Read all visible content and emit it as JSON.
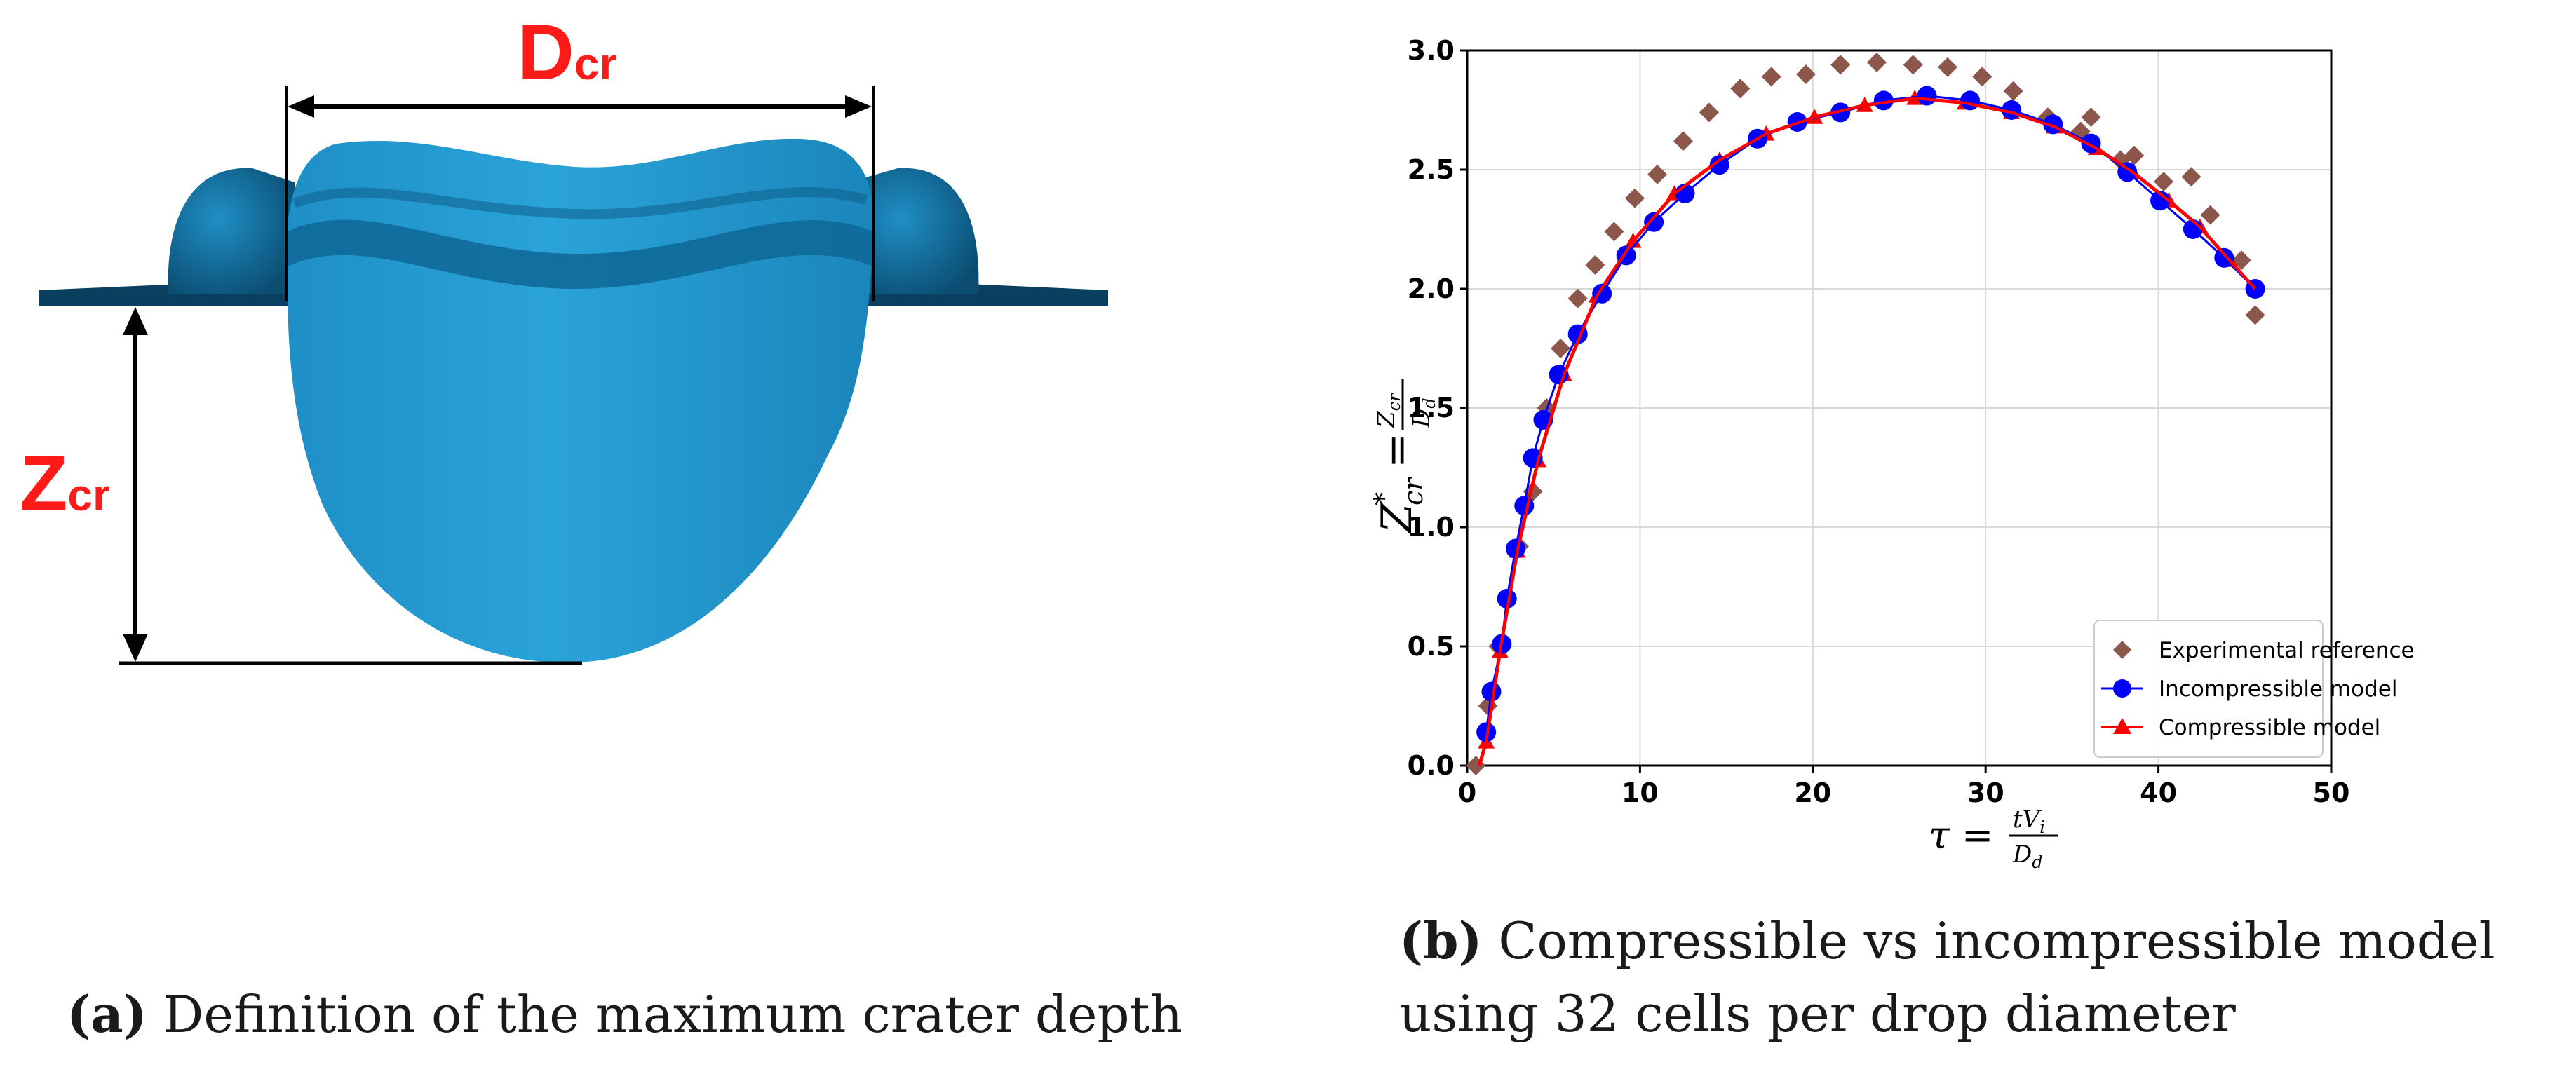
{
  "panel_a": {
    "label_diameter": "D",
    "label_diameter_sub": "cr",
    "label_depth": "Z",
    "label_depth_sub": "cr",
    "caption_tag": "(a)",
    "caption_text": " Definition of the maximum crater depth"
  },
  "panel_b": {
    "caption_tag": "(b)",
    "caption_text": " Compressible vs incompressible model using 32 cells per drop diameter"
  },
  "chart_data": {
    "type": "scatter",
    "xlabel": "τ = tV_i / D_d",
    "ylabel": "Z*_cr = Z_cr / D_d",
    "xlim": [
      0,
      50
    ],
    "ylim": [
      0,
      3.0
    ],
    "xticks": [
      "0",
      "10",
      "20",
      "30",
      "40",
      "50"
    ],
    "yticks": [
      "0.0",
      "0.5",
      "1.0",
      "1.5",
      "2.0",
      "2.5",
      "3.0"
    ],
    "grid": true,
    "legend_position": "bottom-right",
    "series": [
      {
        "name": "Experimental reference",
        "marker": "diamond",
        "color": "#8c564b",
        "x": [
          0.5,
          1.2,
          1.8,
          2.3,
          3.0,
          3.8,
          4.6,
          5.4,
          6.4,
          7.4,
          8.5,
          9.7,
          11.0,
          12.5,
          14.0,
          15.8,
          17.6,
          19.6,
          21.6,
          23.7,
          25.8,
          27.8,
          29.8,
          31.6,
          33.6,
          35.5,
          36.1,
          37.8,
          38.6,
          40.3,
          41.9,
          43.0,
          44.8,
          45.6
        ],
        "y": [
          0.0,
          0.25,
          0.5,
          0.7,
          0.92,
          1.15,
          1.5,
          1.75,
          1.96,
          2.1,
          2.24,
          2.38,
          2.48,
          2.62,
          2.74,
          2.84,
          2.89,
          2.9,
          2.94,
          2.95,
          2.94,
          2.93,
          2.89,
          2.83,
          2.72,
          2.66,
          2.72,
          2.54,
          2.56,
          2.45,
          2.47,
          2.31,
          2.12,
          1.89
        ]
      },
      {
        "name": "Incompressible model",
        "marker": "circle",
        "color": "#0000ff",
        "x": [
          1.1,
          1.4,
          2.0,
          2.3,
          2.8,
          3.3,
          3.8,
          4.4,
          5.3,
          6.4,
          7.8,
          9.2,
          10.8,
          12.6,
          14.6,
          16.8,
          19.1,
          21.6,
          24.1,
          26.6,
          29.1,
          31.5,
          33.9,
          36.1,
          38.2,
          40.1,
          42.0,
          43.8,
          45.6
        ],
        "y": [
          0.14,
          0.31,
          0.51,
          0.7,
          0.91,
          1.09,
          1.29,
          1.45,
          1.64,
          1.81,
          1.98,
          2.14,
          2.28,
          2.4,
          2.52,
          2.63,
          2.7,
          2.74,
          2.79,
          2.81,
          2.79,
          2.75,
          2.69,
          2.61,
          2.49,
          2.37,
          2.25,
          2.13,
          2.0
        ]
      },
      {
        "name": "Compressible model",
        "marker": "triangle",
        "color": "#ff0000",
        "x": [
          1.1,
          1.9,
          2.9,
          4.1,
          5.6,
          7.5,
          9.6,
          12.0,
          14.6,
          17.3,
          20.1,
          23.0,
          25.9,
          28.8,
          31.5,
          34.0,
          36.4,
          38.5,
          40.6,
          42.4,
          44.1,
          45.6
        ],
        "y": [
          0.1,
          0.48,
          0.9,
          1.28,
          1.64,
          1.97,
          2.2,
          2.4,
          2.54,
          2.65,
          2.72,
          2.77,
          2.8,
          2.78,
          2.74,
          2.68,
          2.59,
          2.49,
          2.37,
          2.26,
          2.12,
          2.0
        ]
      }
    ]
  }
}
